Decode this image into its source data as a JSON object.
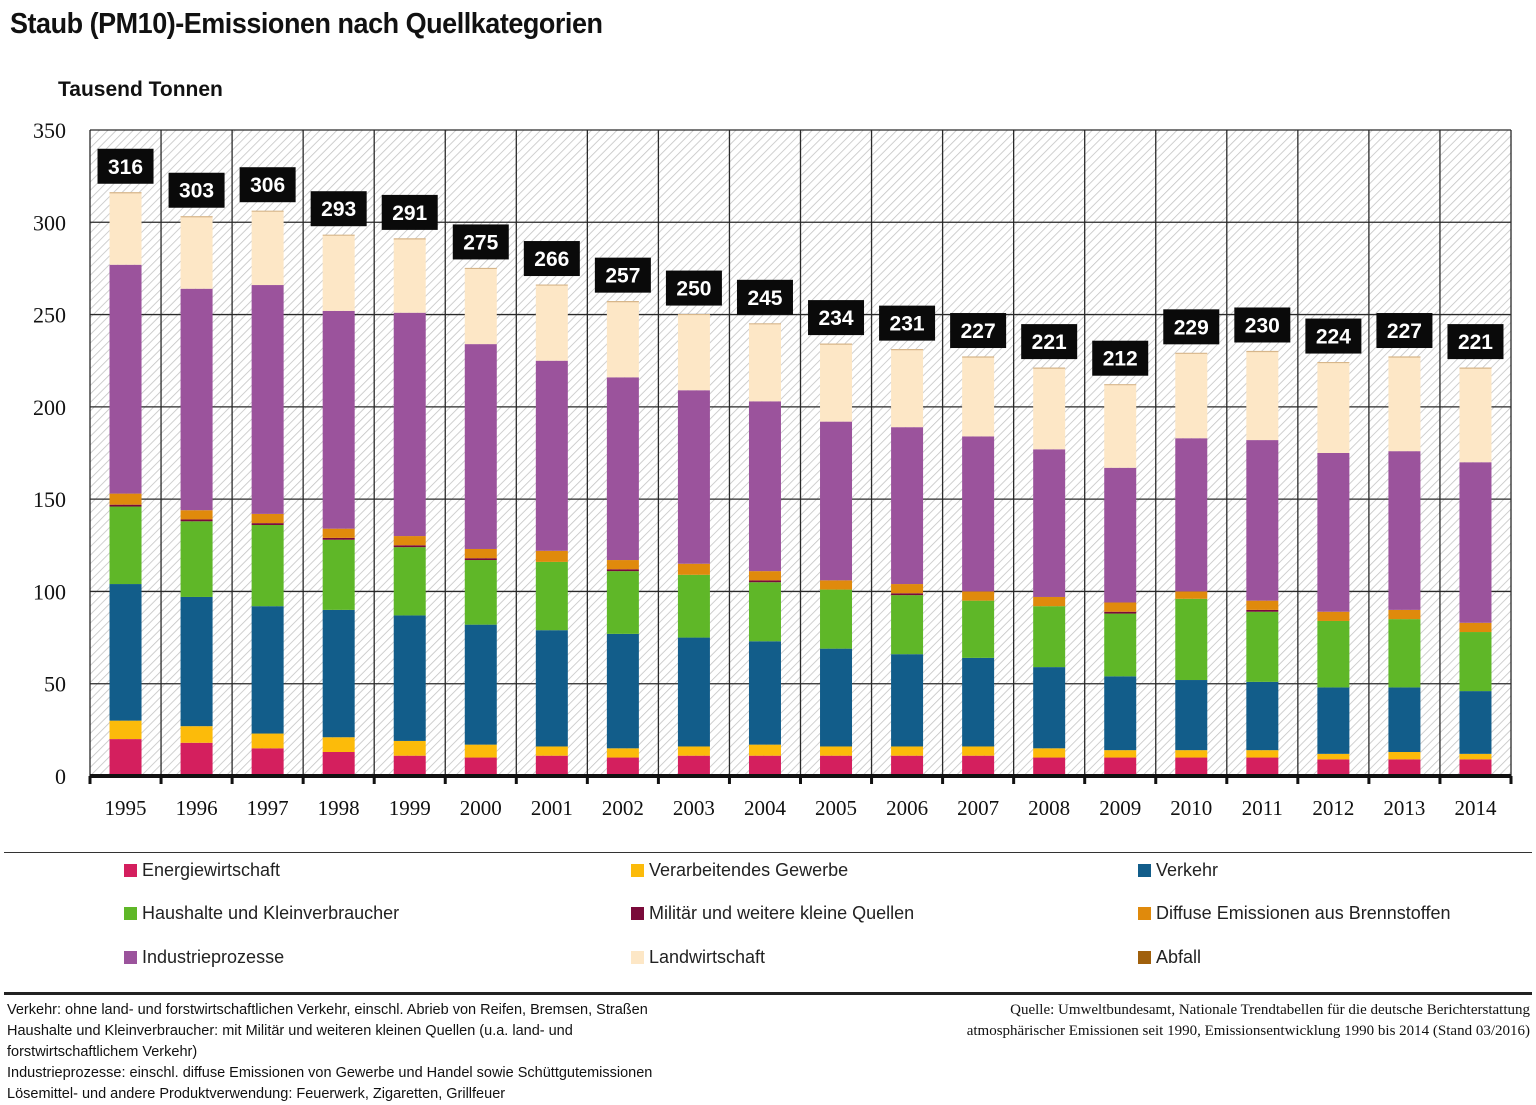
{
  "title": "Staub (PM10)-Emissionen nach Quellkategorien",
  "unit_label": "Tausend Tonnen",
  "chart_data": {
    "type": "bar",
    "stacked": true,
    "title": "Staub (PM10)-Emissionen nach Quellkategorien",
    "xlabel": "",
    "ylabel": "Tausend Tonnen",
    "ylim": [
      0,
      350
    ],
    "yticks": [
      0,
      50,
      100,
      150,
      200,
      250,
      300,
      350
    ],
    "grid": true,
    "legend_position": "bottom",
    "categories": [
      "1995",
      "1996",
      "1997",
      "1998",
      "1999",
      "2000",
      "2001",
      "2002",
      "2003",
      "2004",
      "2005",
      "2006",
      "2007",
      "2008",
      "2009",
      "2010",
      "2011",
      "2012",
      "2013",
      "2014"
    ],
    "totals": [
      316,
      303,
      306,
      293,
      291,
      275,
      266,
      257,
      250,
      245,
      234,
      231,
      227,
      221,
      212,
      229,
      230,
      224,
      227,
      221
    ],
    "series": [
      {
        "name": "Energiewirtschaft",
        "color": "#d41f5e",
        "values": [
          20,
          18,
          15,
          13,
          11,
          10,
          11,
          10,
          11,
          11,
          11,
          11,
          11,
          10,
          10,
          10,
          10,
          9,
          9,
          9
        ]
      },
      {
        "name": "Verarbeitendes Gewerbe",
        "color": "#fcbb0a",
        "values": [
          10,
          9,
          8,
          8,
          8,
          7,
          5,
          5,
          5,
          6,
          5,
          5,
          5,
          5,
          4,
          4,
          4,
          3,
          4,
          3
        ]
      },
      {
        "name": "Verkehr",
        "color": "#125d8a",
        "values": [
          74,
          70,
          69,
          69,
          68,
          65,
          63,
          62,
          59,
          56,
          53,
          50,
          48,
          44,
          40,
          38,
          37,
          36,
          35,
          34
        ]
      },
      {
        "name": "Haushalte und Kleinverbraucher",
        "color": "#5fb728",
        "values": [
          42,
          41,
          44,
          38,
          37,
          35,
          37,
          34,
          34,
          32,
          32,
          32,
          31,
          33,
          34,
          44,
          38,
          36,
          37,
          32
        ]
      },
      {
        "name": "Militär und weitere kleine Quellen",
        "color": "#7a0a3a",
        "values": [
          1,
          1,
          1,
          1,
          1,
          1,
          0,
          1,
          0,
          1,
          0,
          1,
          0,
          0,
          1,
          0,
          1,
          0,
          0,
          0
        ]
      },
      {
        "name": "Diffuse Emissionen aus Brennstoffen",
        "color": "#e08a0c",
        "values": [
          6,
          5,
          5,
          5,
          5,
          5,
          6,
          5,
          6,
          5,
          5,
          5,
          5,
          5,
          5,
          4,
          5,
          5,
          5,
          5
        ]
      },
      {
        "name": "Industrieprozesse",
        "color": "#9b539c",
        "values": [
          124,
          120,
          124,
          118,
          121,
          111,
          103,
          99,
          94,
          92,
          86,
          85,
          84,
          80,
          73,
          83,
          87,
          86,
          86,
          87
        ]
      },
      {
        "name": "Landwirtschaft",
        "color": "#fde7c6",
        "values": [
          39,
          39,
          40,
          41,
          40,
          41,
          41,
          41,
          41,
          42,
          42,
          42,
          43,
          44,
          45,
          46,
          48,
          49,
          51,
          51
        ]
      },
      {
        "name": "Abfall",
        "color": "#a0600c",
        "values": [
          0,
          0,
          0,
          0,
          0,
          0,
          0,
          0,
          0,
          0,
          0,
          0,
          0,
          0,
          0,
          0,
          0,
          0,
          0,
          0
        ]
      }
    ]
  },
  "legend": [
    {
      "label": "Energiewirtschaft",
      "color": "#d41f5e"
    },
    {
      "label": "Verarbeitendes Gewerbe",
      "color": "#fcbb0a"
    },
    {
      "label": "Verkehr",
      "color": "#125d8a"
    },
    {
      "label": "Haushalte und Kleinverbraucher",
      "color": "#5fb728"
    },
    {
      "label": "Militär und weitere kleine Quellen",
      "color": "#7a0a3a"
    },
    {
      "label": "Diffuse Emissionen aus Brennstoffen",
      "color": "#e08a0c"
    },
    {
      "label": "Industrieprozesse",
      "color": "#9b539c"
    },
    {
      "label": "Landwirtschaft",
      "color": "#fde7c6"
    },
    {
      "label": "Abfall",
      "color": "#a0600c"
    }
  ],
  "notes": [
    "Verkehr: ohne land- und forstwirtschaftlichen Verkehr, einschl. Abrieb von Reifen, Bremsen, Straßen",
    "Haushalte und Kleinverbraucher: mit Militär und weiteren kleinen Quellen (u.a. land- und",
    "forstwirtschaftlichem Verkehr)",
    "Industrieprozesse: einschl. diffuse Emissionen von Gewerbe und Handel sowie Schüttgutemissionen",
    "Lösemittel- und andere Produktverwendung: Feuerwerk, Zigaretten, Grillfeuer"
  ],
  "source": [
    "Quelle: Umweltbundesamt, Nationale Trendtabellen für die deutsche Berichterstattung",
    "atmosphärischer Emissionen seit 1990, Emissionsentwicklung 1990 bis 2014 (Stand 03/2016)"
  ]
}
